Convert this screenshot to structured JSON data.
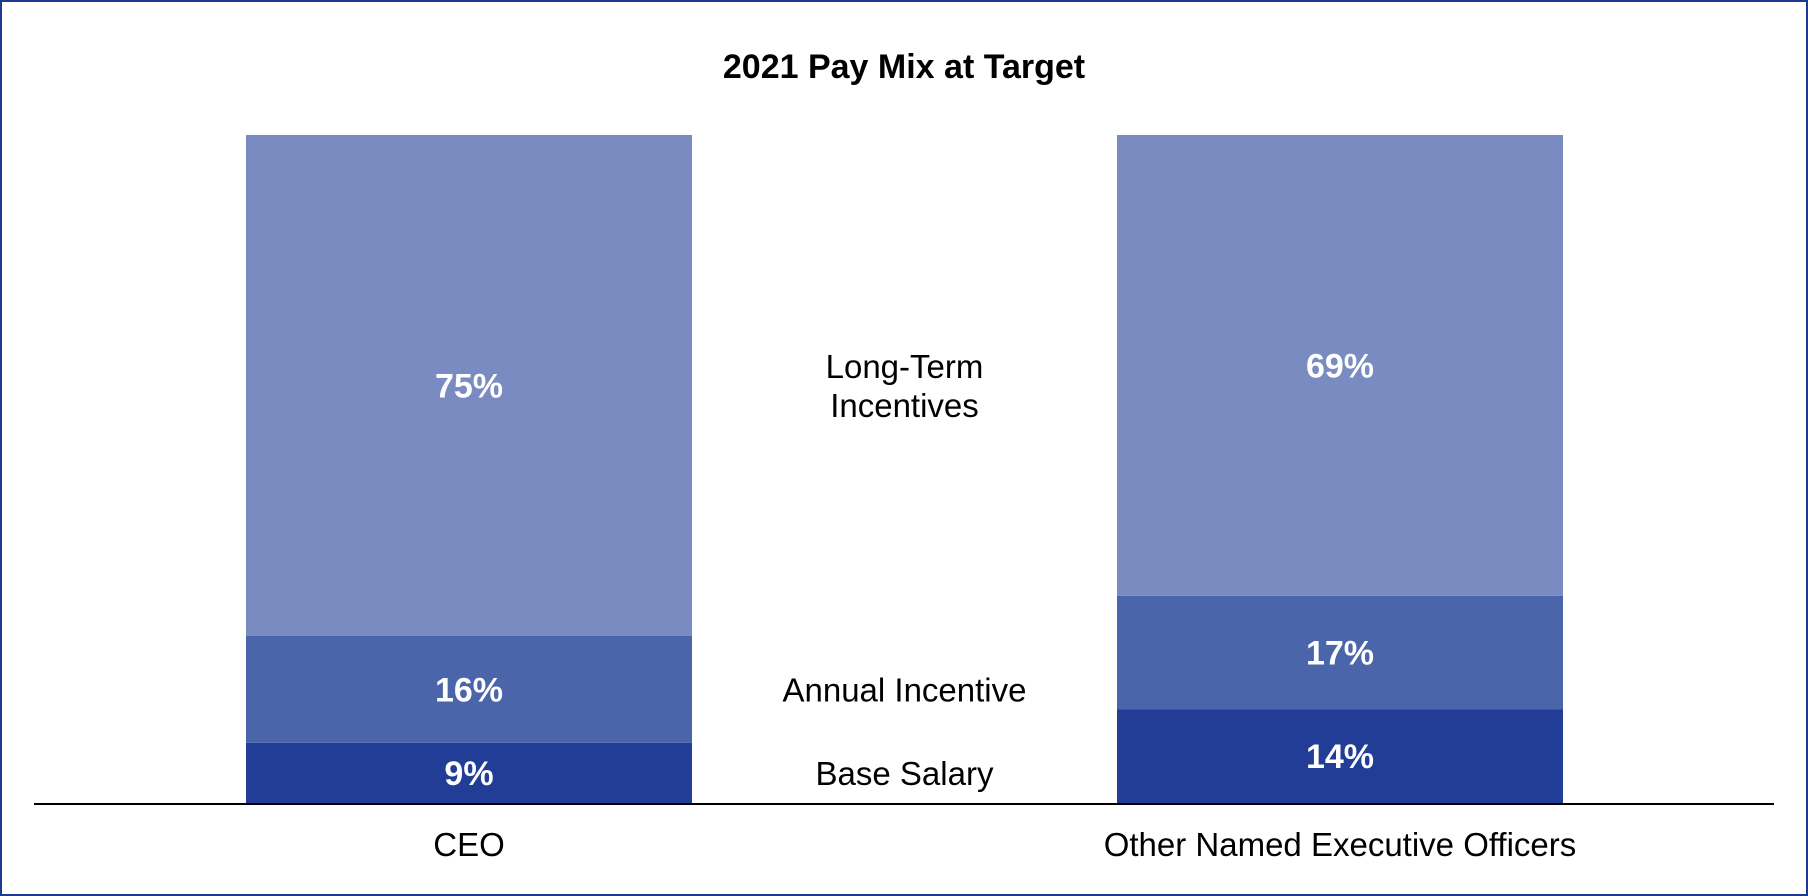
{
  "chart_data": {
    "type": "bar",
    "stacked": true,
    "title": "2021 Pay Mix at Target",
    "categories": [
      "CEO",
      "Other Named Executive Officers"
    ],
    "series": [
      {
        "name": "Base Salary",
        "values": [
          9,
          14
        ],
        "labels": [
          "9%",
          "14%"
        ],
        "color": "#213d96"
      },
      {
        "name": "Annual Incentive",
        "values": [
          16,
          17
        ],
        "labels": [
          "16%",
          "17%"
        ],
        "color": "#4b65aa"
      },
      {
        "name": "Long-Term Incentives",
        "values": [
          75,
          69
        ],
        "labels": [
          "75%",
          "69%"
        ],
        "color": "#7a8bc1"
      }
    ],
    "ylim": [
      0,
      100
    ],
    "grid": false,
    "legend": "center, between bars"
  }
}
